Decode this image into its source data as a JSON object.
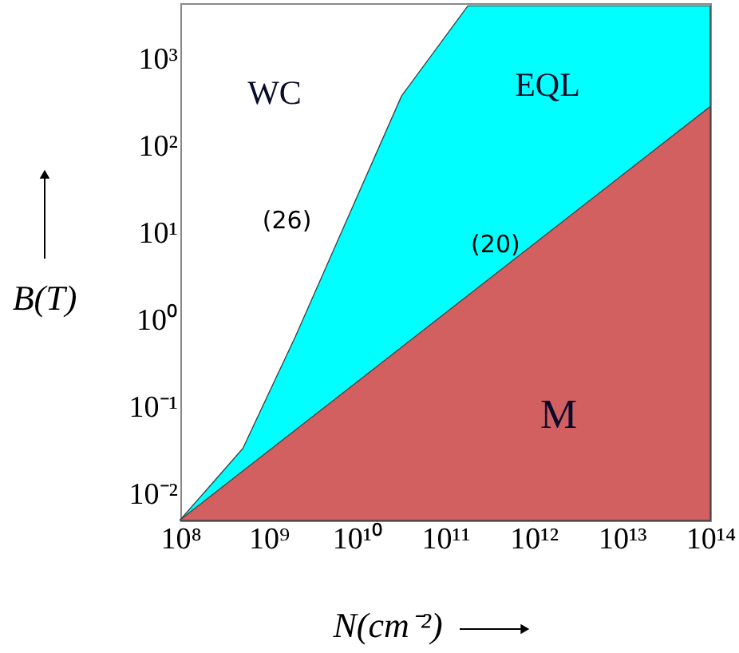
{
  "chart_data": {
    "type": "area",
    "xlabel": "N(cm⁻²)",
    "ylabel": "B(T)",
    "log": "xy",
    "xlim": [
      100000000.0,
      100000000000000.0
    ],
    "xticks": [
      {
        "value": 100000000.0,
        "label": "10⁸"
      },
      {
        "value": 1000000000.0,
        "label": "10⁹"
      },
      {
        "value": 10000000000.0,
        "label": "10¹⁰"
      },
      {
        "value": 100000000000.0,
        "label": "10¹¹"
      },
      {
        "value": 1000000000000.0,
        "label": "10¹²"
      },
      {
        "value": 10000000000000.0,
        "label": "10¹³"
      },
      {
        "value": 100000000000000.0,
        "label": "10¹⁴"
      }
    ],
    "ylim": [
      0.0049,
      4300
    ],
    "yticks": [
      {
        "value": 0.01,
        "label": "10⁻²"
      },
      {
        "value": 0.1,
        "label": "10⁻¹"
      },
      {
        "value": 1,
        "label": "10⁰"
      },
      {
        "value": 10,
        "label": "10¹"
      },
      {
        "value": 100,
        "label": "10²"
      },
      {
        "value": 1000,
        "label": "10³"
      }
    ],
    "grid": false,
    "series": [
      {
        "color": "#00ffff",
        "x": [
          100000000.0,
          510000000.0,
          2000000000.0,
          7200000000.0,
          32000000000.0,
          180000000000.0,
          100000000000000.0
        ],
        "values": [
          0.005,
          0.033,
          0.63,
          12,
          370,
          4000,
          4000
        ]
      },
      {
        "color": "#d26060",
        "x": [
          100000000.0,
          100000000000000.0
        ],
        "values": [
          0.005,
          280
        ]
      }
    ],
    "annotations": [
      "WC",
      "EQL",
      "M",
      {
        "text": "(26)",
        "x": 7200000000.0,
        "y": 12
      },
      {
        "text": "(20)",
        "x": 370000000000.0,
        "y": 3.4
      }
    ]
  }
}
